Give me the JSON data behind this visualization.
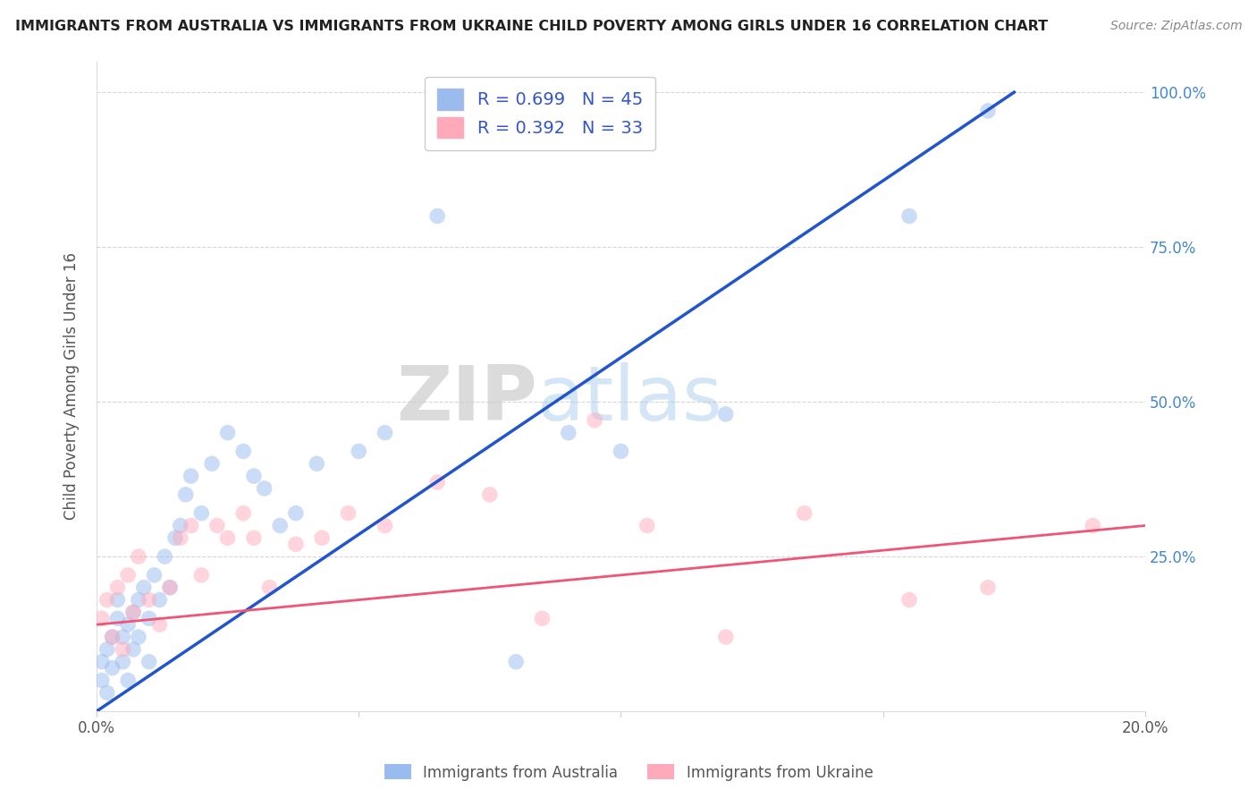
{
  "title": "IMMIGRANTS FROM AUSTRALIA VS IMMIGRANTS FROM UKRAINE CHILD POVERTY AMONG GIRLS UNDER 16 CORRELATION CHART",
  "source": "Source: ZipAtlas.com",
  "ylabel": "Child Poverty Among Girls Under 16",
  "australia_label": "Immigrants from Australia",
  "ukraine_label": "Immigrants from Ukraine",
  "R_australia": 0.699,
  "N_australia": 45,
  "R_ukraine": 0.392,
  "N_ukraine": 33,
  "xlim": [
    0.0,
    0.2
  ],
  "ylim": [
    0.0,
    1.05
  ],
  "x_ticks": [
    0.0,
    0.05,
    0.1,
    0.15,
    0.2
  ],
  "x_tick_labels": [
    "0.0%",
    "",
    "",
    "",
    "20.0%"
  ],
  "y_ticks": [
    0.0,
    0.25,
    0.5,
    0.75,
    1.0
  ],
  "y_tick_labels_right": [
    "",
    "25.0%",
    "50.0%",
    "75.0%",
    "100.0%"
  ],
  "color_australia": "#99bbee",
  "color_ukraine": "#ffaabb",
  "line_color_australia": "#2255cc",
  "line_color_ukraine": "#ee5577",
  "bg_color": "#ffffff",
  "watermark_zip": "ZIP",
  "watermark_atlas": "atlas",
  "aus_line_x0": 0.0,
  "aus_line_y0": 0.0,
  "aus_line_x1": 0.175,
  "aus_line_y1": 1.0,
  "ukr_line_x0": 0.0,
  "ukr_line_y0": 0.14,
  "ukr_line_x1": 0.2,
  "ukr_line_y1": 0.3,
  "australia_x": [
    0.001,
    0.001,
    0.002,
    0.002,
    0.003,
    0.003,
    0.004,
    0.004,
    0.005,
    0.005,
    0.006,
    0.006,
    0.007,
    0.007,
    0.008,
    0.008,
    0.009,
    0.01,
    0.01,
    0.011,
    0.012,
    0.013,
    0.014,
    0.015,
    0.016,
    0.017,
    0.018,
    0.02,
    0.022,
    0.025,
    0.028,
    0.03,
    0.032,
    0.035,
    0.038,
    0.042,
    0.05,
    0.055,
    0.065,
    0.08,
    0.09,
    0.1,
    0.12,
    0.155,
    0.17
  ],
  "australia_y": [
    0.05,
    0.08,
    0.1,
    0.03,
    0.12,
    0.07,
    0.15,
    0.18,
    0.08,
    0.12,
    0.14,
    0.05,
    0.16,
    0.1,
    0.18,
    0.12,
    0.2,
    0.15,
    0.08,
    0.22,
    0.18,
    0.25,
    0.2,
    0.28,
    0.3,
    0.35,
    0.38,
    0.32,
    0.4,
    0.45,
    0.42,
    0.38,
    0.36,
    0.3,
    0.32,
    0.4,
    0.42,
    0.45,
    0.8,
    0.08,
    0.45,
    0.42,
    0.48,
    0.8,
    0.97
  ],
  "ukraine_x": [
    0.001,
    0.002,
    0.003,
    0.004,
    0.005,
    0.006,
    0.007,
    0.008,
    0.01,
    0.012,
    0.014,
    0.016,
    0.018,
    0.02,
    0.023,
    0.025,
    0.028,
    0.03,
    0.033,
    0.038,
    0.043,
    0.048,
    0.055,
    0.065,
    0.075,
    0.085,
    0.095,
    0.105,
    0.12,
    0.135,
    0.155,
    0.17,
    0.19
  ],
  "ukraine_y": [
    0.15,
    0.18,
    0.12,
    0.2,
    0.1,
    0.22,
    0.16,
    0.25,
    0.18,
    0.14,
    0.2,
    0.28,
    0.3,
    0.22,
    0.3,
    0.28,
    0.32,
    0.28,
    0.2,
    0.27,
    0.28,
    0.32,
    0.3,
    0.37,
    0.35,
    0.15,
    0.47,
    0.3,
    0.12,
    0.32,
    0.18,
    0.2,
    0.3
  ]
}
